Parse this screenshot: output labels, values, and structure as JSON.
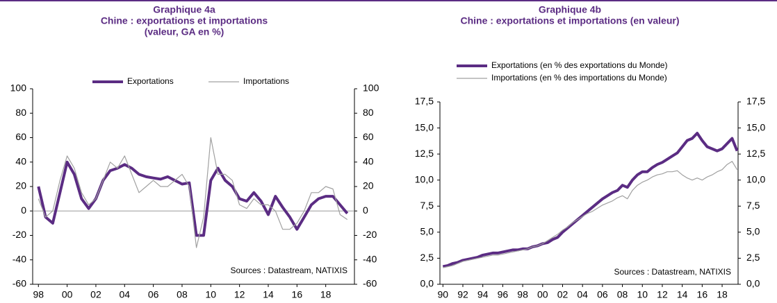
{
  "chart_data": [
    {
      "type": "line",
      "title": "Graphique 4a",
      "subtitle": [
        "Chine : exportations et importations",
        "(valeur, GA en %)"
      ],
      "annotation": "Sources : Datastream, NATIXIS",
      "x": [
        1998,
        1998.5,
        1999,
        1999.5,
        2000,
        2000.5,
        2001,
        2001.5,
        2002,
        2002.5,
        2003,
        2003.5,
        2004,
        2004.5,
        2005,
        2005.5,
        2006,
        2006.5,
        2007,
        2007.5,
        2008,
        2008.5,
        2009,
        2009.5,
        2010,
        2010.5,
        2011,
        2011.5,
        2012,
        2012.5,
        2013,
        2013.5,
        2014,
        2014.5,
        2015,
        2015.5,
        2016,
        2016.5,
        2017,
        2017.5,
        2018,
        2018.5,
        2019,
        2019.5
      ],
      "series": [
        {
          "name": "Exportations",
          "color": "#5b2c83",
          "values": [
            20,
            -5,
            -10,
            15,
            40,
            30,
            10,
            2,
            10,
            25,
            33,
            35,
            38,
            35,
            30,
            28,
            27,
            26,
            28,
            25,
            22,
            23,
            -20,
            -20,
            25,
            35,
            25,
            20,
            10,
            8,
            15,
            8,
            -3,
            12,
            3,
            -5,
            -15,
            -5,
            5,
            10,
            12,
            12,
            5,
            -2
          ]
        },
        {
          "name": "Importations",
          "color": "#a0a0a0",
          "axis": "y2",
          "values": [
            10,
            -5,
            0,
            25,
            45,
            35,
            15,
            5,
            10,
            25,
            40,
            35,
            45,
            30,
            15,
            20,
            25,
            20,
            20,
            25,
            30,
            20,
            -30,
            -5,
            60,
            30,
            30,
            25,
            5,
            2,
            10,
            5,
            5,
            0,
            -15,
            -15,
            -10,
            0,
            15,
            15,
            20,
            18,
            -3,
            -7
          ]
        }
      ],
      "xlim": [
        1997.6,
        2020
      ],
      "xticks": [
        {
          "value": 1998,
          "label": "98"
        },
        {
          "value": 2000,
          "label": "00"
        },
        {
          "value": 2002,
          "label": "02"
        },
        {
          "value": 2004,
          "label": "04"
        },
        {
          "value": 2006,
          "label": "06"
        },
        {
          "value": 2008,
          "label": "08"
        },
        {
          "value": 2010,
          "label": "10"
        },
        {
          "value": 2012,
          "label": "12"
        },
        {
          "value": 2014,
          "label": "14"
        },
        {
          "value": 2016,
          "label": "16"
        },
        {
          "value": 2018,
          "label": "18"
        }
      ],
      "ylim": [
        -60,
        100
      ],
      "yticks": [
        -60,
        -40,
        -20,
        0,
        20,
        40,
        60,
        80,
        100
      ],
      "y2lim": [
        -60,
        100
      ],
      "y2ticks": [
        -60,
        -40,
        -20,
        0,
        20,
        40,
        60,
        80,
        100
      ],
      "legend": "top"
    },
    {
      "type": "line",
      "title": "Graphique 4b",
      "subtitle": [
        "Chine : exportations et importations (en valeur)"
      ],
      "annotation": "Sources : Datastream, NATIXIS",
      "x": [
        1990,
        1990.5,
        1991,
        1991.5,
        1992,
        1992.5,
        1993,
        1993.5,
        1994,
        1994.5,
        1995,
        1995.5,
        1996,
        1996.5,
        1997,
        1997.5,
        1998,
        1998.5,
        1999,
        1999.5,
        2000,
        2000.5,
        2001,
        2001.5,
        2002,
        2002.5,
        2003,
        2003.5,
        2004,
        2004.5,
        2005,
        2005.5,
        2006,
        2006.5,
        2007,
        2007.5,
        2008,
        2008.5,
        2009,
        2009.5,
        2010,
        2010.5,
        2011,
        2011.5,
        2012,
        2012.5,
        2013,
        2013.5,
        2014,
        2014.5,
        2015,
        2015.5,
        2016,
        2016.5,
        2017,
        2017.5,
        2018,
        2018.5,
        2019,
        2019.5
      ],
      "series": [
        {
          "name": "Exportations (en % des exportations du Monde)",
          "color": "#5b2c83",
          "values": [
            1.7,
            1.8,
            2.0,
            2.1,
            2.3,
            2.4,
            2.5,
            2.6,
            2.8,
            2.9,
            3.0,
            3.0,
            3.1,
            3.2,
            3.3,
            3.3,
            3.4,
            3.4,
            3.6,
            3.7,
            3.9,
            4.0,
            4.3,
            4.5,
            5.0,
            5.4,
            5.8,
            6.2,
            6.6,
            7.0,
            7.4,
            7.8,
            8.2,
            8.5,
            8.8,
            9.0,
            9.5,
            9.3,
            10.0,
            10.5,
            10.8,
            10.8,
            11.2,
            11.5,
            11.7,
            12.0,
            12.3,
            12.6,
            13.2,
            13.8,
            14.0,
            14.5,
            13.8,
            13.2,
            13.0,
            12.8,
            13.0,
            13.5,
            14.0,
            12.8
          ]
        },
        {
          "name": "Importations (en % des importations du Monde)",
          "color": "#a0a0a0",
          "axis": "y2",
          "values": [
            1.6,
            1.7,
            1.8,
            2.0,
            2.2,
            2.3,
            2.4,
            2.5,
            2.6,
            2.7,
            2.8,
            2.8,
            2.9,
            3.0,
            3.1,
            3.2,
            3.3,
            3.4,
            3.6,
            3.7,
            3.9,
            4.2,
            4.5,
            4.8,
            5.2,
            5.5,
            5.9,
            6.2,
            6.5,
            6.8,
            7.0,
            7.3,
            7.6,
            7.8,
            8.0,
            8.3,
            8.5,
            8.2,
            9.0,
            9.5,
            9.8,
            10.0,
            10.3,
            10.5,
            10.6,
            10.8,
            10.8,
            10.9,
            10.5,
            10.2,
            10.0,
            10.2,
            10.0,
            10.3,
            10.5,
            10.8,
            11.0,
            11.5,
            11.8,
            11.0
          ]
        }
      ],
      "xlim": [
        1989.7,
        2019.6
      ],
      "xticks": [
        {
          "value": 1990,
          "label": "90"
        },
        {
          "value": 1992,
          "label": "92"
        },
        {
          "value": 1994,
          "label": "94"
        },
        {
          "value": 1996,
          "label": "96"
        },
        {
          "value": 1998,
          "label": "98"
        },
        {
          "value": 2000,
          "label": "00"
        },
        {
          "value": 2002,
          "label": "02"
        },
        {
          "value": 2004,
          "label": "04"
        },
        {
          "value": 2006,
          "label": "06"
        },
        {
          "value": 2008,
          "label": "08"
        },
        {
          "value": 2010,
          "label": "10"
        },
        {
          "value": 2012,
          "label": "12"
        },
        {
          "value": 2014,
          "label": "14"
        },
        {
          "value": 2016,
          "label": "16"
        },
        {
          "value": 2018,
          "label": "18"
        }
      ],
      "ylim": [
        0,
        17.5
      ],
      "yticks": [
        {
          "value": 0,
          "label": "0,0"
        },
        {
          "value": 2.5,
          "label": "2,5"
        },
        {
          "value": 5,
          "label": "5,0"
        },
        {
          "value": 7.5,
          "label": "7,5"
        },
        {
          "value": 10,
          "label": "10,0"
        },
        {
          "value": 12.5,
          "label": "12,5"
        },
        {
          "value": 15,
          "label": "15,0"
        },
        {
          "value": 17.5,
          "label": "17,5"
        }
      ],
      "y2lim": [
        0,
        17.5
      ],
      "y2ticks": [
        {
          "value": 0,
          "label": "0,0"
        },
        {
          "value": 2.5,
          "label": "2,5"
        },
        {
          "value": 5,
          "label": "5,0"
        },
        {
          "value": 7.5,
          "label": "7,5"
        },
        {
          "value": 10,
          "label": "10,0"
        },
        {
          "value": 12.5,
          "label": "12,5"
        },
        {
          "value": 15,
          "label": "15,0"
        },
        {
          "value": 17.5,
          "label": "17,5"
        }
      ],
      "legend": "top-left"
    }
  ]
}
